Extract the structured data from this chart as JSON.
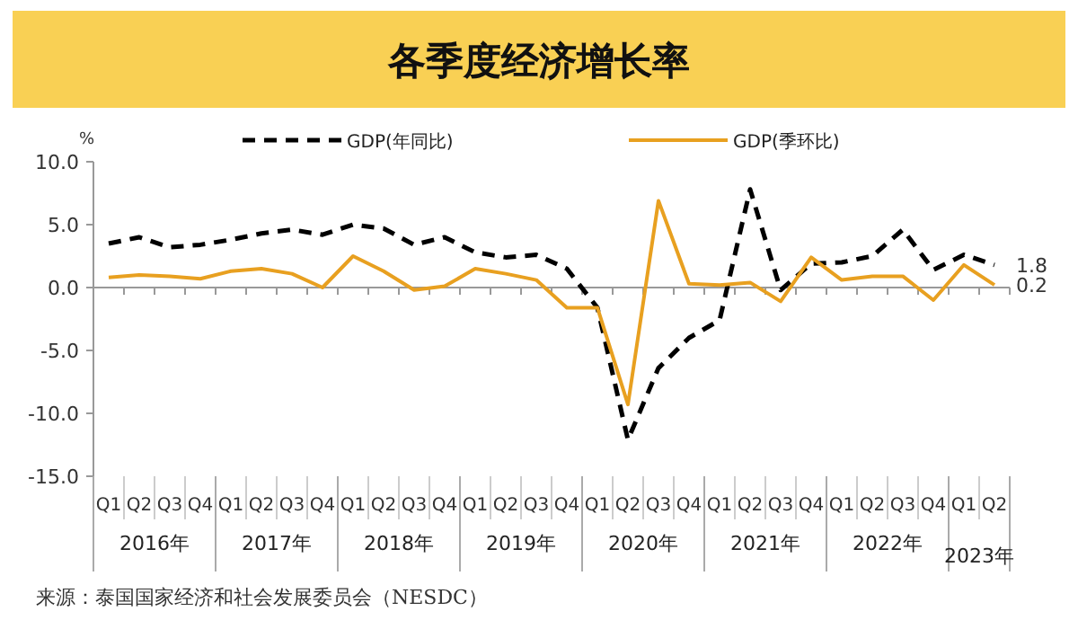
{
  "chart_data": {
    "type": "line",
    "title": "各季度经济增长率",
    "ylabel": "%",
    "categories": [
      "Q1",
      "Q2",
      "Q3",
      "Q4",
      "Q1",
      "Q2",
      "Q3",
      "Q4",
      "Q1",
      "Q2",
      "Q3",
      "Q4",
      "Q1",
      "Q2",
      "Q3",
      "Q4",
      "Q1",
      "Q2",
      "Q3",
      "Q4",
      "Q1",
      "Q2",
      "Q3",
      "Q4",
      "Q1",
      "Q2",
      "Q3",
      "Q4",
      "Q1",
      "Q2"
    ],
    "series": [
      {
        "name": "GDP(年同比)",
        "color": "#000000",
        "line_style": "dashed",
        "values": [
          3.5,
          4.0,
          3.2,
          3.4,
          3.8,
          4.3,
          4.6,
          4.2,
          5.0,
          4.7,
          3.4,
          4.0,
          2.8,
          2.4,
          2.6,
          1.5,
          -1.6,
          -12.1,
          -6.4,
          -4.0,
          -2.6,
          7.8,
          -0.2,
          1.9,
          2.0,
          2.5,
          4.6,
          1.4,
          2.6,
          1.8
        ],
        "value_labels": [
          null,
          null,
          null,
          null,
          null,
          null,
          null,
          null,
          null,
          null,
          null,
          null,
          null,
          null,
          null,
          null,
          null,
          null,
          null,
          null,
          null,
          null,
          null,
          null,
          null,
          null,
          null,
          null,
          null,
          "1.8"
        ]
      },
      {
        "name": "GDP(季环比)",
        "color": "#e8a020",
        "line_style": "solid",
        "values": [
          0.8,
          1.0,
          0.9,
          0.7,
          1.3,
          1.5,
          1.1,
          0.0,
          2.5,
          1.3,
          -0.2,
          0.1,
          1.5,
          1.1,
          0.6,
          -1.6,
          -1.6,
          -9.3,
          6.9,
          0.3,
          0.2,
          0.4,
          -1.1,
          2.4,
          0.6,
          0.9,
          0.9,
          -1.0,
          1.8,
          0.2
        ],
        "value_labels": [
          null,
          null,
          null,
          null,
          null,
          null,
          null,
          null,
          null,
          null,
          null,
          null,
          null,
          null,
          null,
          null,
          null,
          null,
          null,
          null,
          null,
          null,
          null,
          null,
          null,
          null,
          null,
          null,
          null,
          "0.2"
        ]
      }
    ],
    "ylim": [
      -15,
      10
    ],
    "yticks": [
      {
        "value": 10,
        "label": "10.0"
      },
      {
        "value": 5,
        "label": "5.0"
      },
      {
        "value": 0,
        "label": "0.0"
      },
      {
        "value": -5,
        "label": "-5.0"
      },
      {
        "value": -10,
        "label": "-10.0"
      },
      {
        "value": -15,
        "label": "-15.0"
      }
    ],
    "ref_lines": [
      {
        "axis": "y",
        "value": 0,
        "color": "#999999",
        "line_style": "solid"
      }
    ],
    "grid": false,
    "legend": "top",
    "marker": "none",
    "annotations": [
      "2016年",
      "2017年",
      "2018年",
      "2019年",
      "2020年",
      "2021年",
      "2022年",
      "2023年",
      "来源：泰国国家经济和社会发展委员会（NESDC）"
    ]
  }
}
